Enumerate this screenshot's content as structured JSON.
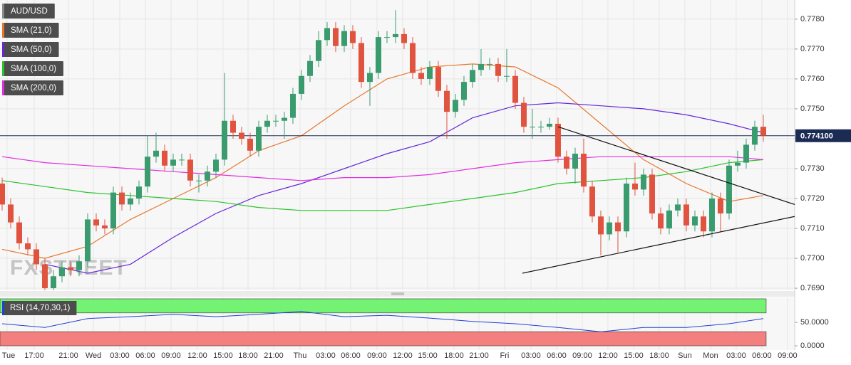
{
  "chart_data": {
    "type": "candlestick",
    "title": "AUD/USD",
    "watermark": "FXSTREET",
    "up_color": "#3a9b6f",
    "down_color": "#e0533f",
    "grid": true,
    "x": [
      0,
      1,
      2,
      3,
      4,
      5,
      6,
      7,
      8,
      9,
      10,
      11,
      12,
      13,
      14,
      15,
      16,
      17,
      18,
      19,
      20,
      21,
      22,
      23,
      24,
      25,
      26,
      27,
      28,
      29,
      30,
      31,
      32,
      33,
      34,
      35,
      36,
      37,
      38,
      39,
      40,
      41,
      42,
      43,
      44,
      45,
      46,
      47,
      48,
      49,
      50,
      51,
      52,
      53,
      54,
      55,
      56,
      57,
      58,
      59,
      60,
      61,
      62,
      63,
      64,
      65,
      66,
      67,
      68,
      69,
      70,
      71,
      72,
      73,
      74,
      75,
      76,
      77,
      78,
      79,
      80,
      81,
      82,
      83,
      84,
      85,
      86,
      87,
      88,
      89
    ],
    "open": [
      0.7725,
      0.7718,
      0.7712,
      0.7705,
      0.7703,
      0.7698,
      0.769,
      0.7694,
      0.7697,
      0.7696,
      0.7699,
      0.7713,
      0.7711,
      0.771,
      0.7722,
      0.7718,
      0.772,
      0.7724,
      0.7734,
      0.7736,
      0.7731,
      0.7733,
      0.7733,
      0.7726,
      0.7726,
      0.7729,
      0.7733,
      0.7746,
      0.7742,
      0.774,
      0.7736,
      0.7744,
      0.7746,
      0.7746,
      0.7747,
      0.7755,
      0.7761,
      0.7766,
      0.7773,
      0.7777,
      0.7771,
      0.7776,
      0.7772,
      0.7759,
      0.7762,
      0.7774,
      0.7774,
      0.7775,
      0.7772,
      0.7762,
      0.776,
      0.7764,
      0.7756,
      0.7749,
      0.7753,
      0.7759,
      0.7763,
      0.7765,
      0.7765,
      0.7761,
      0.7761,
      0.7752,
      0.7744,
      0.7744,
      0.7744,
      0.7745,
      0.7734,
      0.773,
      0.7735,
      0.7724,
      0.7714,
      0.7708,
      0.7712,
      0.7709,
      0.7725,
      0.7723,
      0.7728,
      0.7715,
      0.771,
      0.7716,
      0.7718,
      0.7711,
      0.7714,
      0.7709,
      0.772,
      0.7715,
      0.7731,
      0.7732,
      0.7738,
      0.7744
    ],
    "high": [
      0.7727,
      0.772,
      0.7714,
      0.7707,
      0.7705,
      0.77,
      0.7696,
      0.7699,
      0.7699,
      0.7701,
      0.7715,
      0.7715,
      0.7713,
      0.7724,
      0.7724,
      0.7722,
      0.7726,
      0.7741,
      0.7742,
      0.7738,
      0.7735,
      0.7735,
      0.7735,
      0.7728,
      0.7731,
      0.7735,
      0.7762,
      0.7748,
      0.7744,
      0.7742,
      0.7746,
      0.7748,
      0.7748,
      0.7749,
      0.7757,
      0.7763,
      0.7768,
      0.7776,
      0.7779,
      0.7779,
      0.7778,
      0.7778,
      0.7774,
      0.7764,
      0.7776,
      0.7776,
      0.7783,
      0.7777,
      0.7774,
      0.7764,
      0.7766,
      0.7766,
      0.7758,
      0.7755,
      0.7761,
      0.7765,
      0.777,
      0.7767,
      0.7767,
      0.777,
      0.7763,
      0.7754,
      0.775,
      0.7746,
      0.7747,
      0.7747,
      0.7736,
      0.7737,
      0.774,
      0.7726,
      0.7716,
      0.7714,
      0.7714,
      0.7727,
      0.7732,
      0.773,
      0.773,
      0.7717,
      0.7718,
      0.772,
      0.772,
      0.7716,
      0.7716,
      0.7722,
      0.7722,
      0.7733,
      0.7736,
      0.774,
      0.7746,
      0.7748
    ],
    "low": [
      0.7716,
      0.771,
      0.7703,
      0.7701,
      0.7696,
      0.7688,
      0.7688,
      0.7692,
      0.7694,
      0.7694,
      0.7697,
      0.7709,
      0.7708,
      0.7708,
      0.7716,
      0.7716,
      0.7718,
      0.7722,
      0.7732,
      0.7729,
      0.7729,
      0.7731,
      0.7724,
      0.7722,
      0.7724,
      0.7727,
      0.7731,
      0.774,
      0.7738,
      0.7734,
      0.7734,
      0.7742,
      0.7744,
      0.774,
      0.7745,
      0.7753,
      0.7759,
      0.7764,
      0.7771,
      0.7769,
      0.7769,
      0.777,
      0.7757,
      0.7751,
      0.776,
      0.7772,
      0.7772,
      0.777,
      0.776,
      0.7758,
      0.7758,
      0.7754,
      0.774,
      0.7747,
      0.7751,
      0.7757,
      0.7761,
      0.7763,
      0.7759,
      0.7759,
      0.775,
      0.7742,
      0.774,
      0.7742,
      0.7743,
      0.7732,
      0.7728,
      0.7725,
      0.7722,
      0.7712,
      0.7701,
      0.7706,
      0.7702,
      0.7707,
      0.7721,
      0.7721,
      0.7713,
      0.7708,
      0.7708,
      0.7714,
      0.7709,
      0.7709,
      0.7707,
      0.7707,
      0.7709,
      0.7713,
      0.7729,
      0.773,
      0.7736,
      0.7739
    ],
    "close": [
      0.7718,
      0.7712,
      0.7705,
      0.7703,
      0.7698,
      0.769,
      0.7694,
      0.7697,
      0.7696,
      0.7699,
      0.7713,
      0.7711,
      0.771,
      0.7722,
      0.7718,
      0.772,
      0.7724,
      0.7734,
      0.7736,
      0.7731,
      0.7733,
      0.7733,
      0.7726,
      0.7726,
      0.7729,
      0.7733,
      0.7746,
      0.7742,
      0.774,
      0.7736,
      0.7744,
      0.7746,
      0.7746,
      0.7747,
      0.7755,
      0.7761,
      0.7766,
      0.7773,
      0.7777,
      0.7771,
      0.7776,
      0.7772,
      0.7759,
      0.7762,
      0.7774,
      0.7774,
      0.7775,
      0.7772,
      0.7762,
      0.776,
      0.7764,
      0.7756,
      0.7749,
      0.7753,
      0.7759,
      0.7763,
      0.7765,
      0.7765,
      0.7761,
      0.7761,
      0.7752,
      0.7744,
      0.7744,
      0.7744,
      0.7745,
      0.7734,
      0.773,
      0.7735,
      0.7724,
      0.7714,
      0.7708,
      0.7712,
      0.7709,
      0.7725,
      0.7723,
      0.7728,
      0.7715,
      0.771,
      0.7716,
      0.7718,
      0.7711,
      0.7714,
      0.7709,
      0.772,
      0.7715,
      0.7731,
      0.7732,
      0.7738,
      0.7744,
      0.7741
    ],
    "xlim": [
      -0.25,
      92.67
    ],
    "xticks": [
      {
        "value": 0.58,
        "label": "Tue"
      },
      {
        "value": 3.75,
        "label": "17:00"
      },
      {
        "value": 7.75,
        "label": "21:00"
      },
      {
        "value": 10.67,
        "label": "Wed"
      },
      {
        "value": 13.75,
        "label": "03:00"
      },
      {
        "value": 16.75,
        "label": "06:00"
      },
      {
        "value": 19.75,
        "label": "09:00"
      },
      {
        "value": 22.83,
        "label": "12:00"
      },
      {
        "value": 25.83,
        "label": "15:00"
      },
      {
        "value": 28.75,
        "label": "18:00"
      },
      {
        "value": 31.75,
        "label": "21:00"
      },
      {
        "value": 34.83,
        "label": "Thu"
      },
      {
        "value": 37.83,
        "label": "03:00"
      },
      {
        "value": 40.75,
        "label": "06:00"
      },
      {
        "value": 43.83,
        "label": "09:00"
      },
      {
        "value": 46.83,
        "label": "12:00"
      },
      {
        "value": 49.75,
        "label": "15:00"
      },
      {
        "value": 52.83,
        "label": "18:00"
      },
      {
        "value": 55.75,
        "label": "21:00"
      },
      {
        "value": 58.75,
        "label": "Fri"
      },
      {
        "value": 61.83,
        "label": "03:00"
      },
      {
        "value": 64.83,
        "label": "06:00"
      },
      {
        "value": 67.83,
        "label": "09:00"
      },
      {
        "value": 70.83,
        "label": "12:00"
      },
      {
        "value": 73.83,
        "label": "15:00"
      },
      {
        "value": 76.83,
        "label": "18:00"
      },
      {
        "value": 79.83,
        "label": "Sun"
      },
      {
        "value": 82.83,
        "label": "Mon"
      },
      {
        "value": 85.83,
        "label": "03:00"
      },
      {
        "value": 88.83,
        "label": "06:00"
      },
      {
        "value": 91.83,
        "label": "09:00"
      }
    ],
    "ylim": [
      0.76893,
      0.77864
    ],
    "yticks": [
      {
        "value": 0.769,
        "label": "0.7690"
      },
      {
        "value": 0.77,
        "label": "0.7700"
      },
      {
        "value": 0.771,
        "label": "0.7710"
      },
      {
        "value": 0.772,
        "label": "0.7720"
      },
      {
        "value": 0.773,
        "label": "0.7730"
      },
      {
        "value": 0.774,
        "label": "0.7740"
      },
      {
        "value": 0.775,
        "label": "0.7750"
      },
      {
        "value": 0.776,
        "label": "0.7760"
      },
      {
        "value": 0.777,
        "label": "0.7770"
      },
      {
        "value": 0.778,
        "label": "0.7780"
      }
    ],
    "last_price": {
      "value": 0.7741,
      "label": "0.774100",
      "color": "#1b2b54"
    },
    "overlays": [
      {
        "name": "SMA (21,0)",
        "color": "#e8772e",
        "x": [
          0,
          5,
          10,
          15,
          20,
          25,
          30,
          35,
          40,
          45,
          50,
          55,
          60,
          65,
          70,
          75,
          80,
          85,
          89
        ],
        "values": [
          0.7703,
          0.77,
          0.7704,
          0.7713,
          0.772,
          0.7727,
          0.7736,
          0.7741,
          0.7751,
          0.776,
          0.7764,
          0.7765,
          0.7764,
          0.7757,
          0.7745,
          0.7733,
          0.7725,
          0.7719,
          0.7721
        ]
      },
      {
        "name": "SMA (50,0)",
        "color": "#6626d9",
        "x": [
          5,
          10,
          15,
          20,
          25,
          30,
          35,
          40,
          45,
          50,
          55,
          60,
          65,
          70,
          75,
          80,
          85,
          89
        ],
        "values": [
          0.7698,
          0.7695,
          0.7698,
          0.7707,
          0.7715,
          0.7721,
          0.7725,
          0.773,
          0.7735,
          0.7739,
          0.7747,
          0.7751,
          0.7752,
          0.7751,
          0.775,
          0.7748,
          0.7745,
          0.7742
        ]
      },
      {
        "name": "SMA (100,0)",
        "color": "#2cc22c",
        "x": [
          0,
          5,
          10,
          15,
          20,
          25,
          30,
          35,
          40,
          45,
          50,
          55,
          60,
          65,
          70,
          75,
          80,
          85,
          89
        ],
        "values": [
          0.7726,
          0.7724,
          0.7722,
          0.7721,
          0.772,
          0.7719,
          0.7717,
          0.7716,
          0.7716,
          0.7716,
          0.7718,
          0.772,
          0.7722,
          0.7725,
          0.7726,
          0.7727,
          0.7729,
          0.7732,
          0.7733
        ]
      },
      {
        "name": "SMA (200,0)",
        "color": "#e22ee2",
        "x": [
          0,
          5,
          10,
          15,
          20,
          25,
          30,
          35,
          40,
          45,
          50,
          55,
          60,
          65,
          70,
          75,
          80,
          85,
          89
        ],
        "values": [
          0.7734,
          0.7732,
          0.7731,
          0.773,
          0.7729,
          0.7728,
          0.7727,
          0.7726,
          0.7727,
          0.7727,
          0.7728,
          0.773,
          0.7732,
          0.7733,
          0.7734,
          0.7734,
          0.7734,
          0.7734,
          0.7733
        ]
      }
    ],
    "trendlines": [
      {
        "color": "#111111",
        "x": [
          65.0,
          92.67
        ],
        "values": [
          0.7744,
          0.7718
        ]
      },
      {
        "color": "#111111",
        "x": [
          60.83,
          92.67
        ],
        "values": [
          0.7695,
          0.7714
        ]
      }
    ],
    "rsi": {
      "name": "RSI (14,70,30,1)",
      "color": "#2140d6",
      "x": [
        0,
        5,
        10,
        15,
        20,
        25,
        30,
        35,
        40,
        45,
        50,
        55,
        60,
        65,
        70,
        75,
        80,
        85,
        89
      ],
      "values": [
        47,
        39,
        58,
        62,
        67,
        62,
        67,
        73,
        62,
        65,
        59,
        52,
        47,
        39,
        30,
        39,
        39,
        47,
        58
      ],
      "ylim": [
        0,
        100
      ],
      "yticks": [
        {
          "value": 50,
          "label": "50.0000"
        },
        {
          "value": 0,
          "label": "0.0000"
        }
      ],
      "bands": [
        {
          "from": 70,
          "to": 100,
          "color": "#74f274"
        },
        {
          "from": 0,
          "to": 30,
          "color": "#f47f7f"
        }
      ]
    }
  }
}
